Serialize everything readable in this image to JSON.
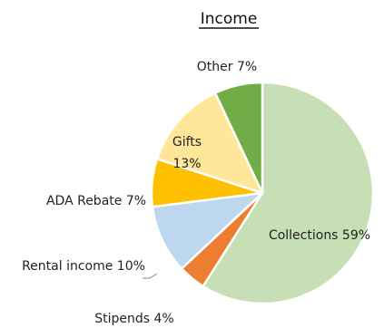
{
  "chart_data": {
    "type": "pie",
    "title": "Income",
    "slices": [
      {
        "name": "Collections",
        "value": 59,
        "label": "Collections 59%",
        "color": "#c6dfb5"
      },
      {
        "name": "Stipends",
        "value": 4,
        "label": "Stipends 4%",
        "color": "#ed7d31"
      },
      {
        "name": "Rental income",
        "value": 10,
        "label": "Rental income 10%",
        "color": "#bdd7ee"
      },
      {
        "name": "ADA Rebate",
        "value": 7,
        "label": "ADA Rebate 7%",
        "color": "#ffc000"
      },
      {
        "name": "Gifts",
        "value": 13,
        "label_lines": [
          "Gifts",
          "13%"
        ],
        "color": "#ffe699"
      },
      {
        "name": "Other",
        "value": 7,
        "label": "Other 7%",
        "color": "#70ad47"
      }
    ],
    "legend": "none",
    "title_underline": true
  }
}
